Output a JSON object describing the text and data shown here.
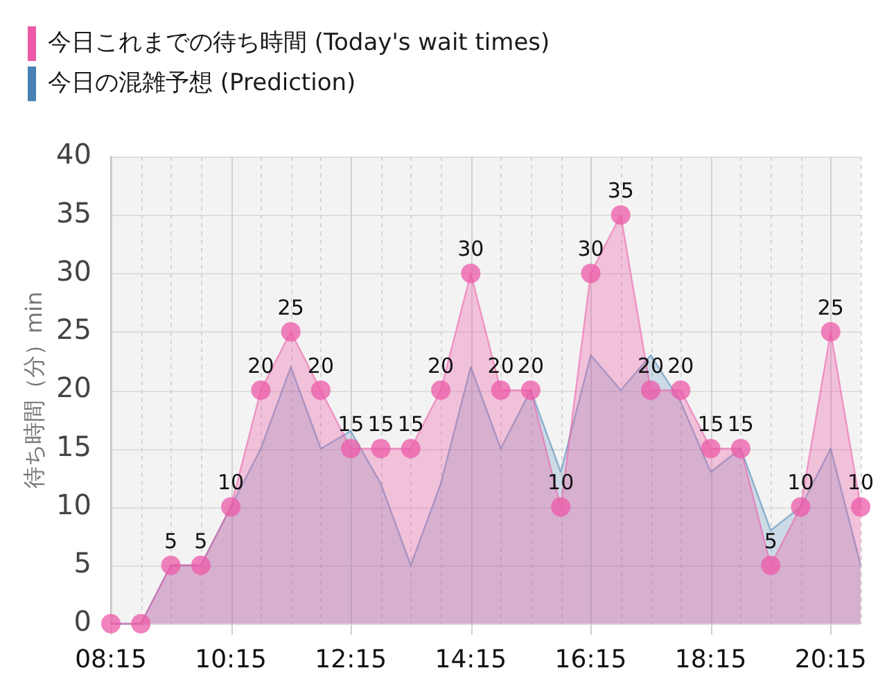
{
  "chart_data": {
    "type": "area",
    "x": [
      8.25,
      8.75,
      9.25,
      9.75,
      10.25,
      10.75,
      11.25,
      11.75,
      12.25,
      12.75,
      13.25,
      13.75,
      14.25,
      14.75,
      15.25,
      15.75,
      16.25,
      16.75,
      17.25,
      17.75,
      18.25,
      18.75,
      19.25,
      19.75,
      20.25,
      20.75
    ],
    "series": [
      {
        "name": "今日これまでの待ち時間 (Today's wait times)",
        "color": "#ec5aa8",
        "marker": "circle",
        "values": [
          0,
          0,
          5,
          5,
          10,
          20,
          25,
          20,
          15,
          15,
          15,
          20,
          30,
          20,
          20,
          10,
          30,
          35,
          20,
          20,
          15,
          15,
          5,
          10,
          25,
          10
        ],
        "value_labels": [
          null,
          null,
          "5",
          "5",
          "10",
          "20",
          "25",
          "20",
          "15",
          "15",
          "15",
          "20",
          "30",
          "20",
          "20",
          "10",
          "30",
          "35",
          "20",
          "20",
          "15",
          "15",
          "5",
          "10",
          "25",
          "10"
        ]
      },
      {
        "name": "今日の混雑予想 (Prediction)",
        "color": "#4682b4",
        "marker": "none",
        "values": [
          0,
          0,
          5,
          5,
          10,
          15,
          22,
          15,
          16.5,
          12,
          5,
          12,
          22,
          15,
          20,
          13,
          23,
          20,
          23,
          19,
          13,
          15,
          8,
          10,
          15,
          5
        ]
      }
    ],
    "ylabel": "待ち時間（分）min",
    "xlim": [
      8.25,
      20.75
    ],
    "xticks": [
      {
        "value": 8.25,
        "label": "08:15"
      },
      {
        "value": 8.75,
        "label": null
      },
      {
        "value": 9.25,
        "label": null
      },
      {
        "value": 9.75,
        "label": null
      },
      {
        "value": 10.25,
        "label": "10:15"
      },
      {
        "value": 10.75,
        "label": null
      },
      {
        "value": 11.25,
        "label": null
      },
      {
        "value": 11.75,
        "label": null
      },
      {
        "value": 12.25,
        "label": "12:15"
      },
      {
        "value": 12.75,
        "label": null
      },
      {
        "value": 13.25,
        "label": null
      },
      {
        "value": 13.75,
        "label": null
      },
      {
        "value": 14.25,
        "label": "14:15"
      },
      {
        "value": 14.75,
        "label": null
      },
      {
        "value": 15.25,
        "label": null
      },
      {
        "value": 15.75,
        "label": null
      },
      {
        "value": 16.25,
        "label": "16:15"
      },
      {
        "value": 16.75,
        "label": null
      },
      {
        "value": 17.25,
        "label": null
      },
      {
        "value": 17.75,
        "label": null
      },
      {
        "value": 18.25,
        "label": "18:15"
      },
      {
        "value": 18.75,
        "label": null
      },
      {
        "value": 19.25,
        "label": null
      },
      {
        "value": 19.75,
        "label": null
      },
      {
        "value": 20.25,
        "label": "20:15"
      },
      {
        "value": 20.75,
        "label": null
      }
    ],
    "ylim": [
      0,
      40
    ],
    "yticks": [
      0,
      5,
      10,
      15,
      20,
      25,
      30,
      35,
      40
    ],
    "grid": true,
    "legend": "top left"
  }
}
